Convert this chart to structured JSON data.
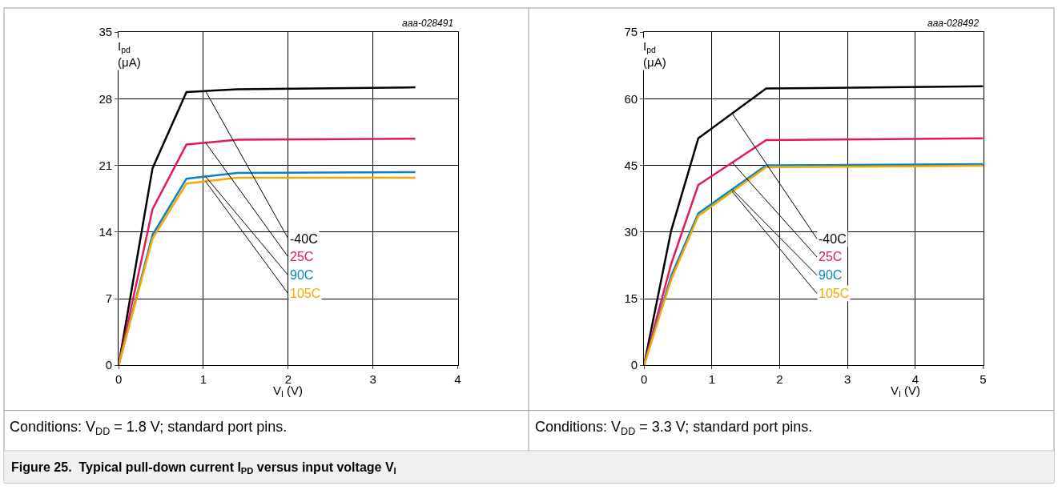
{
  "chart_data": [
    {
      "type": "line",
      "xlabel": "V$_{I}$ (V)",
      "ylabel": "I$_{pd}$ (μA)",
      "xlim": [
        0,
        4
      ],
      "ylim": [
        0,
        35
      ],
      "xticks": [
        0,
        1,
        2,
        3,
        4
      ],
      "yticks": [
        0,
        7,
        14,
        21,
        28,
        35
      ],
      "grid": true,
      "legend": false,
      "marker": "none",
      "line_style": "solid",
      "annotations": [
        "aaa-028491",
        "Conditions: V$_{DD}$ = 1.8 V; standard port pins.",
        "Figure 25.  Typical pull-down current I$_{PD}$ versus input voltage V$_{I}$"
      ],
      "series": [
        {
          "name": "-40C",
          "color": "#000000",
          "x": [
            0,
            0.4,
            0.8,
            1.4,
            3.5
          ],
          "values": [
            0,
            20.7,
            28.7,
            29.0,
            29.2
          ]
        },
        {
          "name": "25C",
          "color": "#e8175d",
          "x": [
            0,
            0.4,
            0.8,
            1.4,
            3.5
          ],
          "values": [
            0,
            16.4,
            23.2,
            23.7,
            23.8
          ]
        },
        {
          "name": "90C",
          "color": "#0a83c6",
          "x": [
            0,
            0.4,
            0.8,
            1.4,
            3.5
          ],
          "values": [
            0,
            13.7,
            19.6,
            20.2,
            20.3
          ]
        },
        {
          "name": "105C",
          "color": "#f5a800",
          "x": [
            0,
            0.4,
            0.8,
            1.4,
            3.5
          ],
          "values": [
            0,
            13.3,
            19.1,
            19.7,
            19.7
          ]
        }
      ]
    },
    {
      "type": "line",
      "xlabel": "V$_{I}$ (V)",
      "ylabel": "I$_{pd}$ (μA)",
      "xlim": [
        0,
        5
      ],
      "ylim": [
        0,
        75
      ],
      "xticks": [
        0,
        1,
        2,
        3,
        4,
        5
      ],
      "yticks": [
        0,
        15,
        30,
        45,
        60,
        75
      ],
      "grid": true,
      "legend": false,
      "marker": "none",
      "line_style": "solid",
      "annotations": [
        "aaa-028492",
        "Conditions: V$_{DD}$ = 3.3 V; standard port pins."
      ],
      "series": [
        {
          "name": "-40C",
          "color": "#000000",
          "x": [
            0,
            0.4,
            0.8,
            1.8,
            5
          ],
          "values": [
            0,
            30.3,
            51.1,
            62.3,
            62.8
          ]
        },
        {
          "name": "25C",
          "color": "#e8175d",
          "x": [
            0,
            0.4,
            0.8,
            1.8,
            5
          ],
          "values": [
            0,
            22.8,
            40.6,
            50.7,
            51.1
          ]
        },
        {
          "name": "90C",
          "color": "#0a83c6",
          "x": [
            0,
            0.4,
            0.8,
            1.8,
            5
          ],
          "values": [
            0,
            20.1,
            34.2,
            45.0,
            45.3
          ]
        },
        {
          "name": "105C",
          "color": "#f5a800",
          "x": [
            0,
            0.4,
            0.8,
            1.8,
            5
          ],
          "values": [
            0,
            19.3,
            33.6,
            44.6,
            44.9
          ]
        }
      ]
    }
  ]
}
